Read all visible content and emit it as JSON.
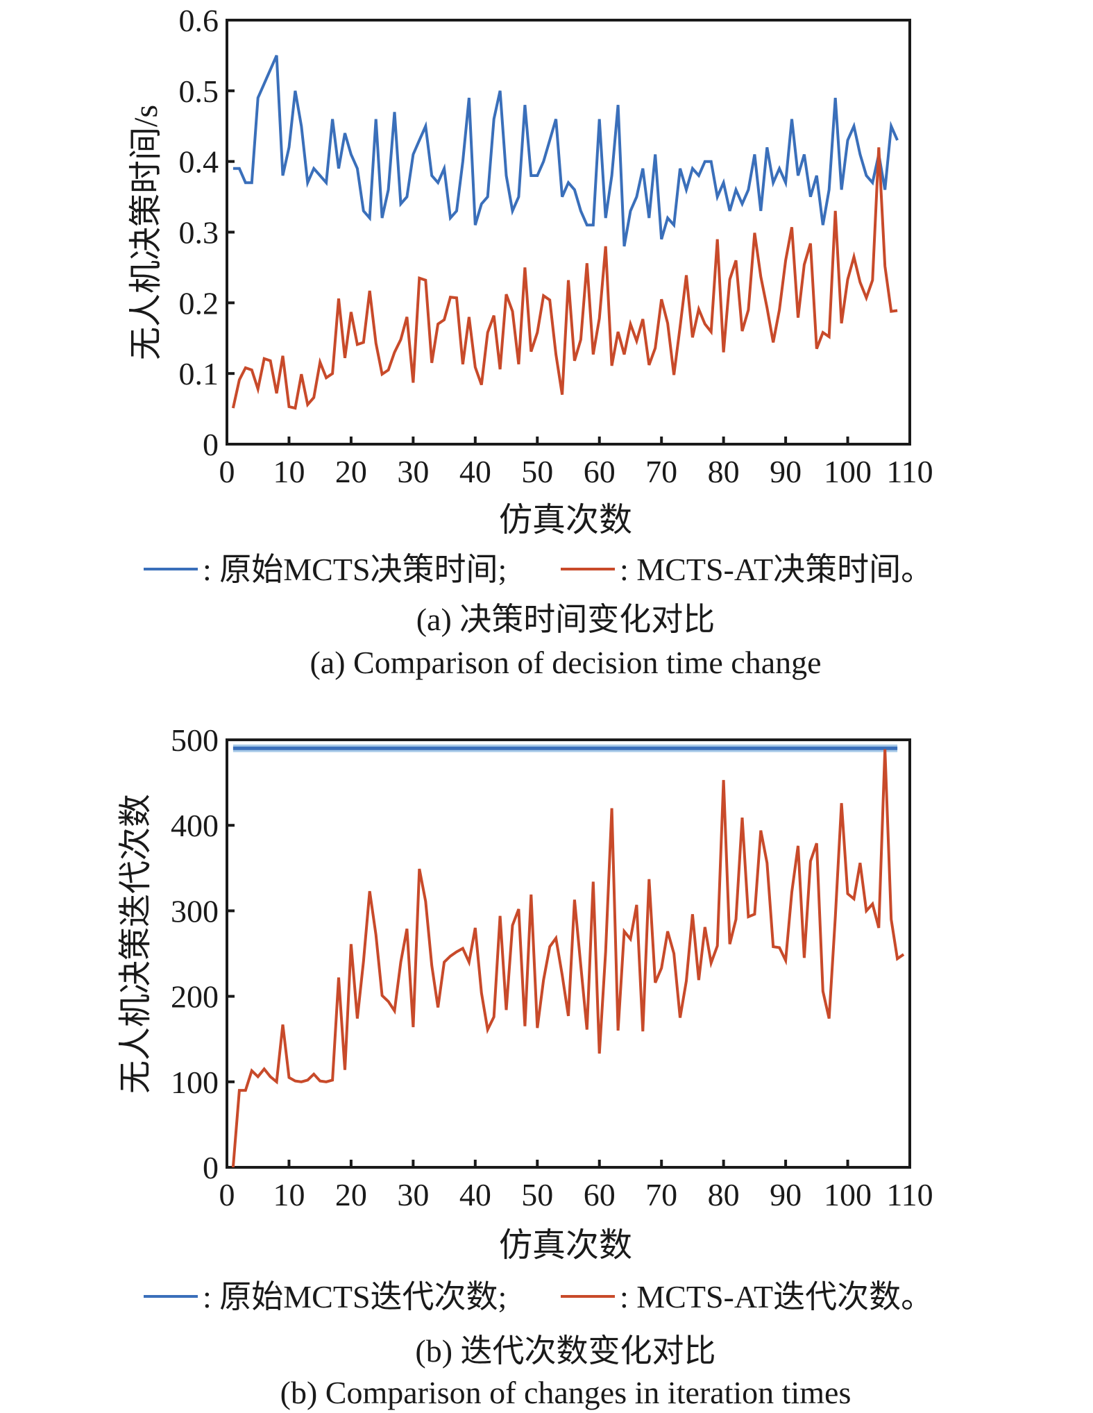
{
  "colors": {
    "original": "#3a6fba",
    "original_band": "#a9cbe8",
    "at": "#c84a2a",
    "axis": "#1a1a1a"
  },
  "chart_data": [
    {
      "id": "a",
      "type": "line",
      "title": "",
      "xlabel": "仿真次数",
      "ylabel": "无人机决策时间/s",
      "xlim": [
        0,
        110
      ],
      "ylim": [
        0,
        0.6
      ],
      "xticks": [
        0,
        10,
        20,
        30,
        40,
        50,
        60,
        70,
        80,
        90,
        100,
        110
      ],
      "xtick_labels": [
        "0",
        "10",
        "20",
        "30",
        "40",
        "50",
        "60",
        "70",
        "80",
        "90",
        "100",
        "110"
      ],
      "yticks": [
        0,
        0.1,
        0.2,
        0.3,
        0.4,
        0.5,
        0.6
      ],
      "ytick_labels": [
        "0",
        "0.1",
        "0.2",
        "0.3",
        "0.4",
        "0.5",
        "0.6"
      ],
      "grid": false,
      "legend": {
        "placement": "below",
        "items": [
          {
            "series": 0,
            "label": ": 原始MCTS决策时间;"
          },
          {
            "series": 1,
            "label": ": MCTS-AT决策时间。"
          }
        ]
      },
      "caption_cn": "(a) 决策时间变化对比",
      "caption_en": "(a) Comparison of decision time change",
      "series": [
        {
          "name": "原始MCTS决策时间",
          "color_key": "original",
          "x_start": 1,
          "values": [
            0.39,
            0.39,
            0.37,
            0.37,
            0.49,
            0.51,
            0.53,
            0.55,
            0.38,
            0.42,
            0.5,
            0.45,
            0.37,
            0.39,
            0.38,
            0.37,
            0.46,
            0.39,
            0.44,
            0.41,
            0.39,
            0.33,
            0.32,
            0.46,
            0.32,
            0.36,
            0.47,
            0.34,
            0.35,
            0.41,
            0.43,
            0.45,
            0.38,
            0.37,
            0.39,
            0.32,
            0.33,
            0.4,
            0.49,
            0.31,
            0.34,
            0.35,
            0.46,
            0.5,
            0.38,
            0.33,
            0.35,
            0.48,
            0.38,
            0.38,
            0.4,
            0.43,
            0.46,
            0.35,
            0.37,
            0.36,
            0.33,
            0.31,
            0.31,
            0.46,
            0.32,
            0.38,
            0.48,
            0.28,
            0.33,
            0.35,
            0.39,
            0.32,
            0.41,
            0.29,
            0.32,
            0.31,
            0.39,
            0.36,
            0.39,
            0.38,
            0.4,
            0.4,
            0.35,
            0.37,
            0.33,
            0.36,
            0.34,
            0.36,
            0.41,
            0.33,
            0.42,
            0.37,
            0.39,
            0.37,
            0.46,
            0.38,
            0.41,
            0.35,
            0.38,
            0.31,
            0.36,
            0.49,
            0.36,
            0.43,
            0.45,
            0.41,
            0.38,
            0.37,
            0.41,
            0.36,
            0.45,
            0.43
          ]
        },
        {
          "name": "MCTS-AT决策时间",
          "color_key": "at",
          "x_start": 1,
          "values": [
            0.051,
            0.091,
            0.108,
            0.105,
            0.078,
            0.121,
            0.118,
            0.072,
            0.125,
            0.053,
            0.051,
            0.099,
            0.056,
            0.066,
            0.116,
            0.094,
            0.1,
            0.206,
            0.122,
            0.187,
            0.141,
            0.144,
            0.217,
            0.143,
            0.099,
            0.105,
            0.13,
            0.148,
            0.18,
            0.087,
            0.235,
            0.232,
            0.115,
            0.17,
            0.176,
            0.208,
            0.207,
            0.113,
            0.18,
            0.109,
            0.084,
            0.158,
            0.182,
            0.106,
            0.212,
            0.188,
            0.113,
            0.25,
            0.131,
            0.158,
            0.21,
            0.204,
            0.127,
            0.07,
            0.232,
            0.118,
            0.148,
            0.256,
            0.127,
            0.178,
            0.28,
            0.111,
            0.159,
            0.127,
            0.17,
            0.146,
            0.177,
            0.112,
            0.136,
            0.205,
            0.171,
            0.098,
            0.166,
            0.239,
            0.151,
            0.191,
            0.17,
            0.159,
            0.29,
            0.13,
            0.233,
            0.26,
            0.16,
            0.19,
            0.299,
            0.237,
            0.193,
            0.144,
            0.19,
            0.26,
            0.307,
            0.179,
            0.254,
            0.284,
            0.135,
            0.158,
            0.152,
            0.33,
            0.171,
            0.233,
            0.265,
            0.229,
            0.207,
            0.232,
            0.42,
            0.252,
            0.188,
            0.189
          ]
        }
      ]
    },
    {
      "id": "b",
      "type": "line",
      "title": "",
      "xlabel": "仿真次数",
      "ylabel": "无人机决策迭代次数",
      "xlim": [
        0,
        110
      ],
      "ylim": [
        0,
        500
      ],
      "xticks": [
        0,
        10,
        20,
        30,
        40,
        50,
        60,
        70,
        80,
        90,
        100,
        110
      ],
      "xtick_labels": [
        "0",
        "10",
        "20",
        "30",
        "40",
        "50",
        "60",
        "70",
        "80",
        "90",
        "100",
        "110"
      ],
      "yticks": [
        0,
        100,
        200,
        300,
        400,
        500
      ],
      "ytick_labels": [
        "0",
        "100",
        "200",
        "300",
        "400",
        "500"
      ],
      "grid": false,
      "legend": {
        "placement": "below",
        "items": [
          {
            "series": 0,
            "label": ": 原始MCTS迭代次数;"
          },
          {
            "series": 1,
            "label": ": MCTS-AT迭代次数。"
          }
        ]
      },
      "caption_cn": "(b) 迭代次数变化对比",
      "caption_en": "(b) Comparison of changes in iteration times",
      "series": [
        {
          "name": "原始MCTS迭代次数",
          "color_key": "original",
          "x_start": 1,
          "constant": true,
          "values": [
            490,
            490,
            490,
            490,
            490,
            490,
            490,
            490,
            490,
            490,
            490,
            490,
            490,
            490,
            490,
            490,
            490,
            490,
            490,
            490,
            490,
            490,
            490,
            490,
            490,
            490,
            490,
            490,
            490,
            490,
            490,
            490,
            490,
            490,
            490,
            490,
            490,
            490,
            490,
            490,
            490,
            490,
            490,
            490,
            490,
            490,
            490,
            490,
            490,
            490,
            490,
            490,
            490,
            490,
            490,
            490,
            490,
            490,
            490,
            490,
            490,
            490,
            490,
            490,
            490,
            490,
            490,
            490,
            490,
            490,
            490,
            490,
            490,
            490,
            490,
            490,
            490,
            490,
            490,
            490,
            490,
            490,
            490,
            490,
            490,
            490,
            490,
            490,
            490,
            490,
            490,
            490,
            490,
            490,
            490,
            490,
            490,
            490,
            490,
            490,
            490,
            490,
            490,
            490,
            490,
            490,
            490,
            490
          ]
        },
        {
          "name": "MCTS-AT迭代次数",
          "color_key": "at",
          "x_start": 1,
          "values": [
            0,
            90,
            90,
            113,
            106,
            115,
            106,
            100,
            167,
            105,
            101,
            100,
            102,
            109,
            101,
            100,
            102,
            222,
            114,
            261,
            174,
            241,
            323,
            272,
            201,
            194,
            183,
            240,
            279,
            164,
            349,
            311,
            236,
            187,
            240,
            247,
            252,
            256,
            240,
            280,
            204,
            161,
            176,
            294,
            184,
            283,
            302,
            165,
            319,
            163,
            219,
            258,
            268,
            225,
            177,
            313,
            236,
            161,
            334,
            133,
            252,
            420,
            160,
            276,
            267,
            307,
            159,
            337,
            216,
            233,
            276,
            250,
            175,
            218,
            296,
            219,
            281,
            239,
            259,
            453,
            261,
            290,
            409,
            293,
            296,
            394,
            356,
            258,
            257,
            242,
            322,
            376,
            245,
            358,
            379,
            206,
            174,
            293,
            426,
            320,
            314,
            356,
            300,
            308,
            280,
            489,
            290,
            244,
            249
          ]
        }
      ]
    }
  ]
}
